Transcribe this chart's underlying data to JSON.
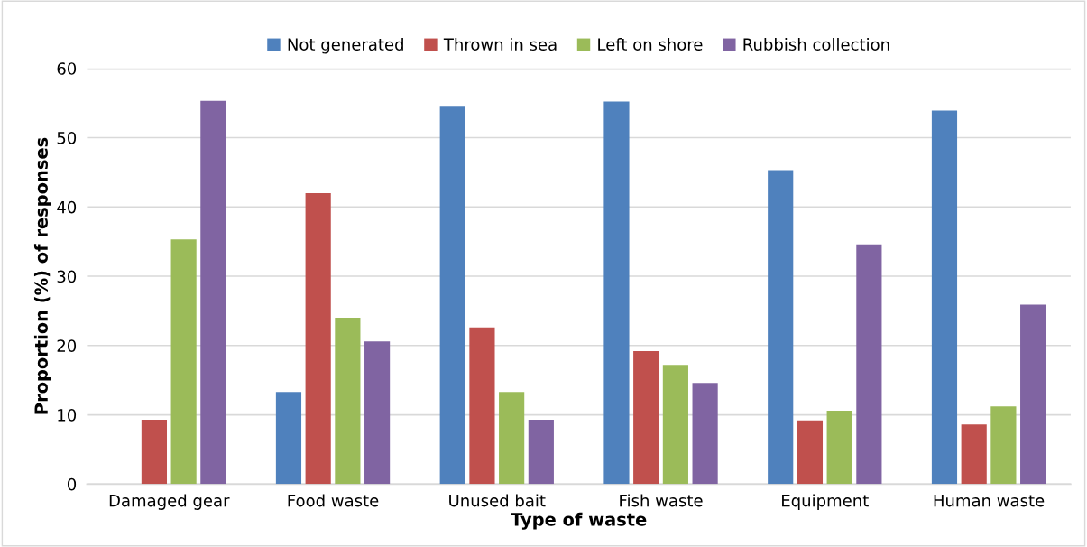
{
  "chart_data": {
    "type": "bar",
    "xlabel": "Type of waste",
    "ylabel": "Proportion (%) of responses",
    "categories": [
      "Damaged gear",
      "Food waste",
      "Unused bait",
      "Fish waste",
      "Equipment",
      "Human waste"
    ],
    "series": [
      {
        "name": "Not generated",
        "color": "#4f81bd",
        "values": [
          0,
          13.3,
          54.6,
          55.2,
          45.3,
          53.9
        ]
      },
      {
        "name": "Thrown in sea",
        "color": "#c0504d",
        "values": [
          9.3,
          42.0,
          22.6,
          19.2,
          9.2,
          8.6
        ]
      },
      {
        "name": "Left on shore",
        "color": "#9bbb59",
        "values": [
          35.3,
          24.0,
          13.3,
          17.2,
          10.6,
          11.2
        ]
      },
      {
        "name": "Rubbish collection",
        "color": "#8064a2",
        "values": [
          55.3,
          20.6,
          9.3,
          14.6,
          34.6,
          25.9
        ]
      }
    ],
    "ylim": [
      0,
      60
    ],
    "yticks": [
      0,
      10,
      20,
      30,
      40,
      50,
      60
    ],
    "grid": "y",
    "legend": "top"
  }
}
